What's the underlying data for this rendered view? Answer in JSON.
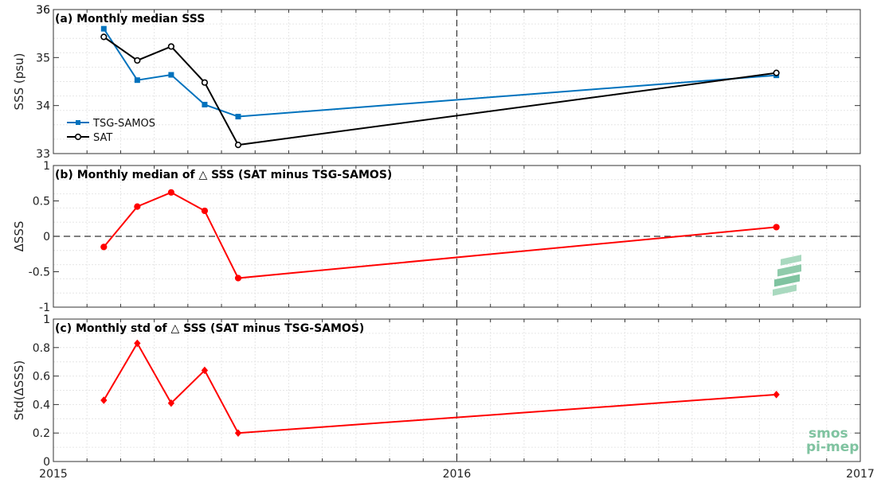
{
  "x_tick_labels": [
    "2015",
    "2016",
    "2017"
  ],
  "chart_data": [
    {
      "type": "line",
      "title": "(a) Monthly median SSS",
      "ylabel": "SSS (psu)",
      "xlim": [
        2015.0,
        2017.0
      ],
      "ylim": [
        33,
        36
      ],
      "yticks": [
        33,
        34,
        35,
        36
      ],
      "grid": true,
      "legend_position": "left",
      "vline_x": 2016.0,
      "series": [
        {
          "name": "TSG-SAMOS",
          "color": "#0072BD",
          "marker": "square",
          "x": [
            2015.125,
            2015.208,
            2015.292,
            2015.375,
            2015.458,
            2016.792
          ],
          "values": [
            35.6,
            34.53,
            34.64,
            34.02,
            33.77,
            34.63
          ]
        },
        {
          "name": "SAT",
          "color": "#000000",
          "marker": "circle",
          "x": [
            2015.125,
            2015.208,
            2015.292,
            2015.375,
            2015.458,
            2016.792
          ],
          "values": [
            35.43,
            34.94,
            35.23,
            34.48,
            33.18,
            34.68
          ]
        }
      ]
    },
    {
      "type": "line",
      "title": "(b) Monthly median of △ SSS (SAT minus TSG-SAMOS)",
      "ylabel": "ΔSSS",
      "xlim": [
        2015.0,
        2017.0
      ],
      "ylim": [
        -1,
        1
      ],
      "yticks": [
        -1,
        -0.5,
        0,
        0.5
      ],
      "ytick_labels": [
        "-1",
        "-0.5",
        "0",
        "0.5"
      ],
      "grid": true,
      "vline_x": 2016.0,
      "hline_y": 0,
      "series": [
        {
          "color": "#FF0000",
          "marker": "circle",
          "x": [
            2015.125,
            2015.208,
            2015.292,
            2015.375,
            2015.458,
            2016.792
          ],
          "values": [
            -0.15,
            0.42,
            0.62,
            0.36,
            -0.59,
            0.13
          ]
        }
      ]
    },
    {
      "type": "line",
      "title": "(c) Monthly std of △ SSS (SAT minus TSG-SAMOS)",
      "ylabel": "Std(ΔSSS)",
      "xlim": [
        2015.0,
        2017.0
      ],
      "ylim": [
        0,
        1
      ],
      "yticks": [
        0,
        0.2,
        0.4,
        0.6,
        0.8,
        1
      ],
      "ytick_labels": [
        "0",
        "0.2",
        "0.4",
        "0.6",
        "0.8",
        "1"
      ],
      "grid": true,
      "vline_x": 2016.0,
      "series": [
        {
          "color": "#FF0000",
          "marker": "diamond",
          "x": [
            2015.125,
            2015.208,
            2015.292,
            2015.375,
            2015.458,
            2016.792
          ],
          "values": [
            0.43,
            0.83,
            0.41,
            0.64,
            0.2,
            0.47
          ]
        }
      ]
    }
  ],
  "logo": {
    "line1": "smos",
    "line2": "pi-mep"
  }
}
